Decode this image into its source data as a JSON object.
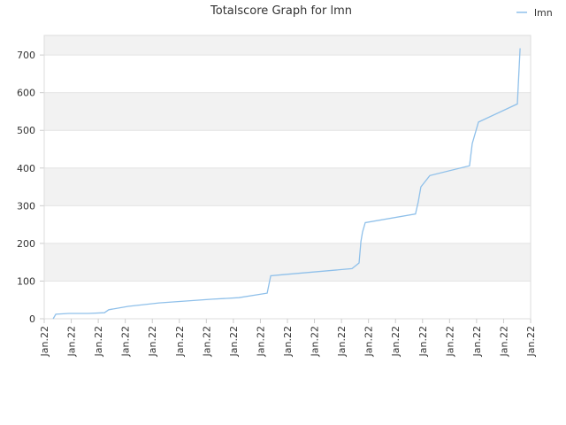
{
  "chart_data": {
    "type": "line",
    "title": "Totalscore Graph for lmn",
    "series": [
      {
        "name": "lmn",
        "color": "#8fc0ea",
        "x": [
          0.33,
          0.43,
          0.92,
          1.64,
          2.23,
          2.39,
          3.11,
          4.25,
          5.24,
          6.22,
          7.2,
          8.25,
          8.38,
          8.84,
          11.39,
          11.65,
          11.72,
          11.78,
          11.88,
          13.74,
          13.84,
          13.94,
          14.27,
          15.74,
          15.84,
          16.07,
          17.51,
          17.61
        ],
        "values": [
          0,
          12,
          14,
          14,
          16,
          24,
          33,
          42,
          47,
          52,
          56,
          68,
          114,
          117,
          133,
          148,
          205,
          230,
          255,
          278,
          310,
          350,
          380,
          406,
          465,
          522,
          570,
          718
        ]
      }
    ],
    "xlim": [
      0,
      18
    ],
    "xticks": [
      {
        "value": 0,
        "label": "Jan.22"
      },
      {
        "value": 1,
        "label": "Jan.22"
      },
      {
        "value": 2,
        "label": "Jan.22"
      },
      {
        "value": 3,
        "label": "Jan.22"
      },
      {
        "value": 4,
        "label": "Jan.22"
      },
      {
        "value": 5,
        "label": "Jan.22"
      },
      {
        "value": 6,
        "label": "Jan.22"
      },
      {
        "value": 7,
        "label": "Jan.22"
      },
      {
        "value": 8,
        "label": "Jan.22"
      },
      {
        "value": 9,
        "label": "Jan.22"
      },
      {
        "value": 10,
        "label": "Jan.22"
      },
      {
        "value": 11,
        "label": "Jan.22"
      },
      {
        "value": 12,
        "label": "Jan.22"
      },
      {
        "value": 13,
        "label": "Jan.22"
      },
      {
        "value": 14,
        "label": "Jan.22"
      },
      {
        "value": 15,
        "label": "Jan.22"
      },
      {
        "value": 16,
        "label": "Jan.22"
      },
      {
        "value": 17,
        "label": "Jan.22"
      },
      {
        "value": 18,
        "label": "Jan.22"
      }
    ],
    "ylim": [
      0,
      752
    ],
    "yticks": [
      0,
      100,
      200,
      300,
      400,
      500,
      600,
      700
    ],
    "grid": true,
    "legend": "top-right"
  }
}
